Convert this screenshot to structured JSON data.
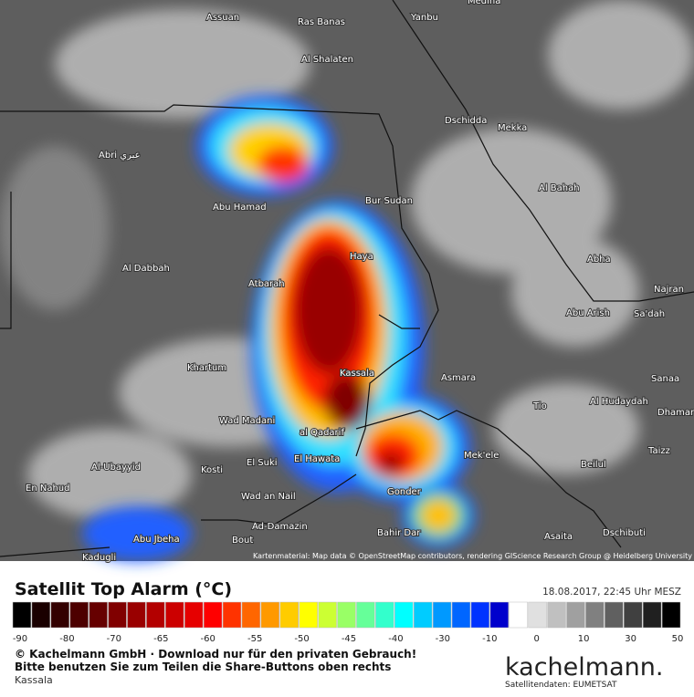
{
  "map": {
    "places": [
      "Assuan",
      "Ras Banas",
      "Yanbu",
      "Medina",
      "Al Shalaten",
      "Dschidda",
      "Mekka",
      "Abri عبري",
      "Abu Hamad",
      "Bur Sudan",
      "Al Bahah",
      "Haya",
      "Abha",
      "Al Dabbah",
      "Atbarah",
      "Najran",
      "Abu Arish",
      "Sa'dah",
      "Khartum",
      "Kassala",
      "Asmara",
      "Sanaa",
      "Tio",
      "Al Hudaydah",
      "Dhamar",
      "Wad Madani",
      "al Qadarif",
      "Taizz",
      "Mek'ele",
      "El Hawata",
      "El Suki",
      "Al-Ubayyid",
      "Kosti",
      "Beilul",
      "En Nahud",
      "Gonder",
      "Wad an Nail",
      "Abu Jbeha",
      "Ad-Damazin",
      "Bahir Dar",
      "Asaita",
      "Dschibuti",
      "Bout",
      "Kadugli"
    ],
    "attribution": "Kartenmaterial: Map data © OpenStreetMap contributors, rendering GIScience Research Group @ Heidelberg University"
  },
  "legend": {
    "title": "Satellit Top Alarm (°C)",
    "timestamp": "18.08.2017, 22:45 Uhr MESZ",
    "colors": [
      "#000000",
      "#1a0000",
      "#330000",
      "#4d0000",
      "#660000",
      "#800000",
      "#990000",
      "#b30000",
      "#cc0000",
      "#e60000",
      "#ff0000",
      "#ff3300",
      "#ff6600",
      "#ff9900",
      "#ffcc00",
      "#ffff00",
      "#ccff33",
      "#99ff66",
      "#66ff99",
      "#33ffcc",
      "#00ffff",
      "#00ccff",
      "#0099ff",
      "#0066ff",
      "#0033ff",
      "#0000cc",
      "#ffffff",
      "#e0e0e0",
      "#c0c0c0",
      "#a0a0a0",
      "#808080",
      "#606060",
      "#404040",
      "#202020",
      "#000000"
    ],
    "ticks": [
      -90,
      -80,
      -70,
      -65,
      -60,
      -55,
      -50,
      -45,
      -40,
      -30,
      -10,
      0,
      10,
      30,
      50
    ]
  },
  "footer": {
    "copyright": "© Kachelmann GmbH · Download nur für den privaten Gebrauch!",
    "share": "Bitte benutzen Sie zum Teilen die Share-Buttons oben rechts",
    "location": "Kassala",
    "logo": "kachelmann.",
    "source": "Satellitendaten: EUMETSAT"
  }
}
